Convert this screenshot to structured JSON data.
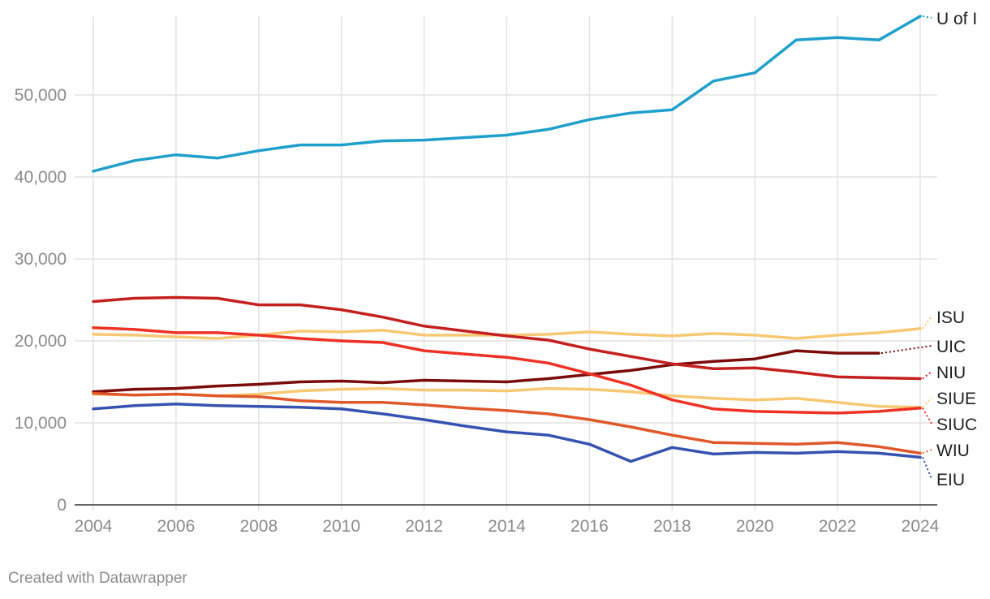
{
  "chart_data": {
    "type": "line",
    "title": "",
    "xlabel": "",
    "ylabel": "",
    "xlim": [
      2004,
      2024
    ],
    "ylim": [
      0,
      60000
    ],
    "grid": true,
    "x_ticks": [
      "2004",
      "2006",
      "2008",
      "2010",
      "2012",
      "2014",
      "2016",
      "2018",
      "2020",
      "2022",
      "2024"
    ],
    "y_ticks": [
      "0",
      "10,000",
      "20,000",
      "30,000",
      "40,000",
      "50,000"
    ],
    "x": [
      2004,
      2005,
      2006,
      2007,
      2008,
      2009,
      2010,
      2011,
      2012,
      2013,
      2014,
      2015,
      2016,
      2017,
      2018,
      2019,
      2020,
      2021,
      2022,
      2023,
      2024
    ],
    "series": [
      {
        "name": "U of I",
        "color": "#1f9fcb",
        "values": [
          40700,
          42000,
          42700,
          42300,
          43200,
          43900,
          43900,
          44400,
          44500,
          44800,
          45100,
          45800,
          47000,
          47800,
          48200,
          51700,
          52700,
          56700,
          57000,
          56700,
          59600
        ]
      },
      {
        "name": "ISU",
        "color": "#f7c873",
        "values": [
          20800,
          20700,
          20500,
          20300,
          20700,
          21200,
          21100,
          21300,
          20700,
          20700,
          20700,
          20800,
          21100,
          20800,
          20600,
          20900,
          20700,
          20300,
          20700,
          21000,
          21500
        ]
      },
      {
        "name": "UIC",
        "color": "#7b0b0b",
        "values": [
          13800,
          14100,
          14200,
          14500,
          14700,
          15000,
          15100,
          14900,
          15200,
          15100,
          15000,
          15400,
          15900,
          16400,
          17100,
          17500,
          17800,
          18800,
          18500,
          18500,
          null
        ]
      },
      {
        "name": "NIU",
        "color": "#c3201f",
        "values": [
          24800,
          25200,
          25300,
          25200,
          24400,
          24400,
          23800,
          22900,
          21800,
          21200,
          20600,
          20100,
          19000,
          18100,
          17200,
          16600,
          16700,
          16200,
          15600,
          15500,
          15400
        ]
      },
      {
        "name": "SIUE",
        "color": "#f7c873",
        "values": [
          13500,
          13400,
          13500,
          13300,
          13500,
          13900,
          14100,
          14200,
          14000,
          14000,
          13900,
          14200,
          14100,
          13800,
          13300,
          13000,
          12800,
          13000,
          12500,
          12000,
          11900
        ]
      },
      {
        "name": "SIUC",
        "color": "#ee3124",
        "values": [
          21600,
          21400,
          21000,
          21000,
          20700,
          20300,
          20000,
          19800,
          18800,
          18400,
          18000,
          17300,
          16000,
          14600,
          12800,
          11700,
          11400,
          11300,
          11200,
          11400,
          11800
        ]
      },
      {
        "name": "WIU",
        "color": "#e0582a",
        "values": [
          13600,
          13400,
          13500,
          13300,
          13200,
          12700,
          12500,
          12500,
          12200,
          11800,
          11500,
          11100,
          10400,
          9500,
          8500,
          7600,
          7500,
          7400,
          7600,
          7100,
          6300
        ]
      },
      {
        "name": "EIU",
        "color": "#3652b0",
        "values": [
          11700,
          12100,
          12300,
          12100,
          12000,
          11900,
          11700,
          11100,
          10400,
          9600,
          8900,
          8500,
          7400,
          5300,
          7000,
          6200,
          6400,
          6300,
          6500,
          6300,
          5800
        ]
      }
    ]
  },
  "credit": "Created with Datawrapper"
}
